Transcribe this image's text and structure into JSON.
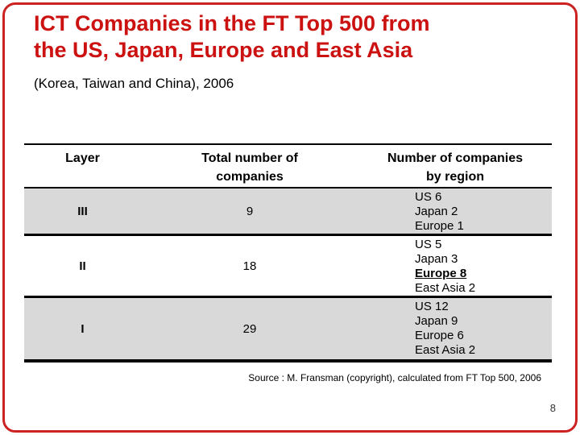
{
  "slide": {
    "title_line1": "ICT Companies in the FT Top 500 from",
    "title_line2": "the US, Japan, Europe and East Asia",
    "subtitle": "(Korea, Taiwan and China), 2006",
    "source": "Source : M. Fransman (copyright), calculated from FT Top 500, 2006",
    "page_number": "8"
  },
  "colors": {
    "title_red": "#cc1111",
    "border_red": "#cc2222",
    "row_shade_gray": "#d9d9d9",
    "table_line_black": "#000000"
  },
  "table": {
    "headers": [
      {
        "line1": "Layer",
        "line2": ""
      },
      {
        "line1": "Total number of",
        "line2": "companies"
      },
      {
        "line1": "Number of companies",
        "line2": "by region"
      }
    ],
    "rows": [
      {
        "layer": "III",
        "total": "9",
        "shaded": true,
        "regions": [
          {
            "label": "US 6",
            "emphasis": false
          },
          {
            "label": "Japan 2",
            "emphasis": false
          },
          {
            "label": "Europe 1",
            "emphasis": false
          }
        ]
      },
      {
        "layer": "II",
        "total": "18",
        "shaded": false,
        "regions": [
          {
            "label": "US 5",
            "emphasis": false
          },
          {
            "label": "Japan 3",
            "emphasis": false
          },
          {
            "label": "Europe 8",
            "emphasis": true
          },
          {
            "label": "East Asia 2",
            "emphasis": false
          }
        ]
      },
      {
        "layer": "I",
        "total": "29",
        "shaded": true,
        "regions": [
          {
            "label": "US 12",
            "emphasis": false
          },
          {
            "label": "Japan 9",
            "emphasis": false
          },
          {
            "label": "Europe 6",
            "emphasis": false
          },
          {
            "label": "East Asia 2",
            "emphasis": false
          }
        ]
      }
    ]
  },
  "chart_data": {
    "type": "table",
    "title": "ICT Companies in the FT Top 500 from the US, Japan, Europe and East Asia (Korea, Taiwan and China), 2006",
    "columns": [
      "Layer",
      "Total number of companies",
      "Number of companies by region"
    ],
    "rows": [
      [
        "III",
        9,
        "US 6; Japan 2; Europe 1"
      ],
      [
        "II",
        18,
        "US 5; Japan 3; Europe 8; East Asia 2"
      ],
      [
        "I",
        29,
        "US 12; Japan 9; Europe 6; East Asia 2"
      ]
    ]
  }
}
